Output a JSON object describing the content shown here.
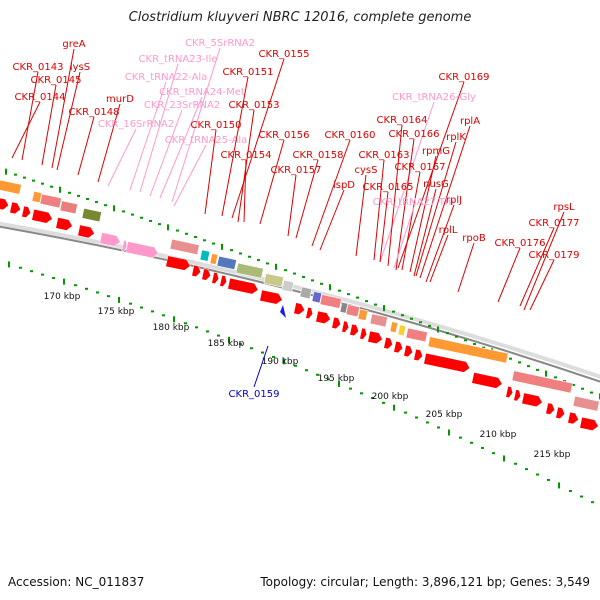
{
  "title": "Clostridium kluyveri NBRC 12016, complete genome",
  "footer": {
    "accession": "Accession: NC_011837",
    "topology": "Topology: circular; Length: 3,896,121 bp; Genes: 3,549"
  },
  "colors": {
    "cds": "#ff0000",
    "rna": "#ff99cc",
    "blue_marker": "#1a1aff",
    "axis_ticks": "#009900",
    "backbone_light": "#dddddd",
    "backbone_dark": "#888888"
  },
  "scale_labels": [
    "170 kbp",
    "175 kbp",
    "180 kbp",
    "185 kbp",
    "190 kbp",
    "195 kbp",
    "200 kbp",
    "205 kbp",
    "210 kbp",
    "215 kbp"
  ],
  "gene_labels": [
    {
      "text": "greA",
      "color": "red"
    },
    {
      "text": "CKR_0143",
      "color": "red"
    },
    {
      "text": "lysS",
      "color": "red"
    },
    {
      "text": "CKR_0145",
      "color": "red"
    },
    {
      "text": "CKR_0144",
      "color": "red"
    },
    {
      "text": "murD",
      "color": "red"
    },
    {
      "text": "CKR_0148",
      "color": "red"
    },
    {
      "text": "CKR_5SrRNA2",
      "color": "pink"
    },
    {
      "text": "CKR_tRNA23-Ile",
      "color": "pink"
    },
    {
      "text": "CKR_tRNA22-Ala",
      "color": "pink"
    },
    {
      "text": "CKR_tRNA24-Met",
      "color": "pink"
    },
    {
      "text": "CKR_23SrRNA2",
      "color": "pink"
    },
    {
      "text": "CKR_16SrRNA2",
      "color": "pink"
    },
    {
      "text": "CKR_tRNA25-Ala",
      "color": "pink"
    },
    {
      "text": "CKR_0155",
      "color": "red"
    },
    {
      "text": "CKR_0151",
      "color": "red"
    },
    {
      "text": "CKR_0153",
      "color": "red"
    },
    {
      "text": "CKR_0150",
      "color": "red"
    },
    {
      "text": "CKR_0156",
      "color": "red"
    },
    {
      "text": "CKR_0154",
      "color": "red"
    },
    {
      "text": "CKR_0160",
      "color": "red"
    },
    {
      "text": "CKR_0158",
      "color": "red"
    },
    {
      "text": "CKR_0157",
      "color": "red"
    },
    {
      "text": "ispD",
      "color": "red"
    },
    {
      "text": "CKR_0169",
      "color": "red"
    },
    {
      "text": "CKR_tRNA26-Gly",
      "color": "pink"
    },
    {
      "text": "CKR_0164",
      "color": "red"
    },
    {
      "text": "rplA",
      "color": "red"
    },
    {
      "text": "CKR_0166",
      "color": "red"
    },
    {
      "text": "rplK",
      "color": "red"
    },
    {
      "text": "CKR_0163",
      "color": "red"
    },
    {
      "text": "rpmG",
      "color": "red"
    },
    {
      "text": "cysS",
      "color": "red"
    },
    {
      "text": "CKR_0167",
      "color": "red"
    },
    {
      "text": "nusG",
      "color": "red"
    },
    {
      "text": "CKR_0165",
      "color": "red"
    },
    {
      "text": "CKR_tRNA27-Thr",
      "color": "pink"
    },
    {
      "text": "rplJ",
      "color": "red"
    },
    {
      "text": "rplL",
      "color": "red"
    },
    {
      "text": "rpoB",
      "color": "red"
    },
    {
      "text": "rpsL",
      "color": "red"
    },
    {
      "text": "CKR_0177",
      "color": "red"
    },
    {
      "text": "CKR_0176",
      "color": "red"
    },
    {
      "text": "CKR_0179",
      "color": "red"
    },
    {
      "text": "CKR_0159",
      "color": "blue"
    }
  ]
}
